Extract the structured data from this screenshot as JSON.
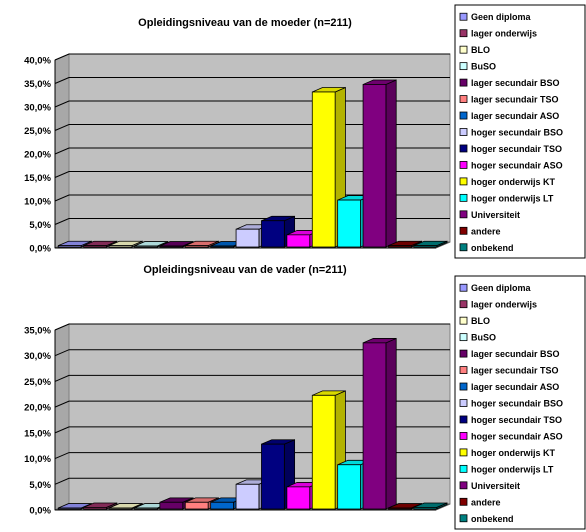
{
  "chart_data": [
    {
      "type": "bar",
      "title": "Opleidingsniveau van de moeder (n=211)",
      "xlabel": "",
      "ylabel": "",
      "ylim": [
        0,
        40
      ],
      "yticks": [
        "0,0%",
        "5,0%",
        "10,0%",
        "15,0%",
        "20,0%",
        "25,0%",
        "30,0%",
        "35,0%",
        "40,0%"
      ],
      "grid": true,
      "legend_position": "right",
      "categories": [
        "Geen diploma",
        "lager onderwijs",
        "BLO",
        "BuSO",
        "lager secundair BSO",
        "lager secundair TSO",
        "lager secundair ASO",
        "hoger secundair BSO",
        "hoger secundair TSO",
        "hoger secundair ASO",
        "hoger onderwijs KT",
        "hoger onderwijs LT",
        "Universiteit",
        "andere",
        "onbekend"
      ],
      "values": [
        0.5,
        0.5,
        0.5,
        0.3,
        0.0,
        0.5,
        0.3,
        4.0,
        5.8,
        2.8,
        33.2,
        10.2,
        34.8,
        0.5,
        0.5
      ]
    },
    {
      "type": "bar",
      "title": "Opleidingsniveau van de vader (n=211)",
      "xlabel": "",
      "ylabel": "",
      "ylim": [
        0,
        35
      ],
      "yticks": [
        "0,0%",
        "5,0%",
        "10,0%",
        "15,0%",
        "20,0%",
        "25,0%",
        "30,0%",
        "35,0%"
      ],
      "grid": true,
      "legend_position": "right",
      "categories": [
        "Geen diploma",
        "lager onderwijs",
        "BLO",
        "BuSO",
        "lager secundair BSO",
        "lager secundair TSO",
        "lager secundair ASO",
        "hoger secundair BSO",
        "hoger secundair TSO",
        "hoger secundair ASO",
        "hoger onderwijs KT",
        "hoger onderwijs LT",
        "Universiteit",
        "andere",
        "onbekend"
      ],
      "values": [
        0.0,
        0.5,
        0.0,
        0.0,
        1.5,
        1.5,
        1.5,
        5.0,
        12.8,
        4.5,
        22.3,
        8.8,
        32.5,
        0.3,
        0.5
      ]
    }
  ],
  "series_colors": [
    "#9999ff",
    "#993366",
    "#ffffcc",
    "#ccffff",
    "#660066",
    "#ff8080",
    "#0066cc",
    "#ccccff",
    "#000080",
    "#ff00ff",
    "#ffff00",
    "#00ffff",
    "#800080",
    "#800000",
    "#008080"
  ]
}
